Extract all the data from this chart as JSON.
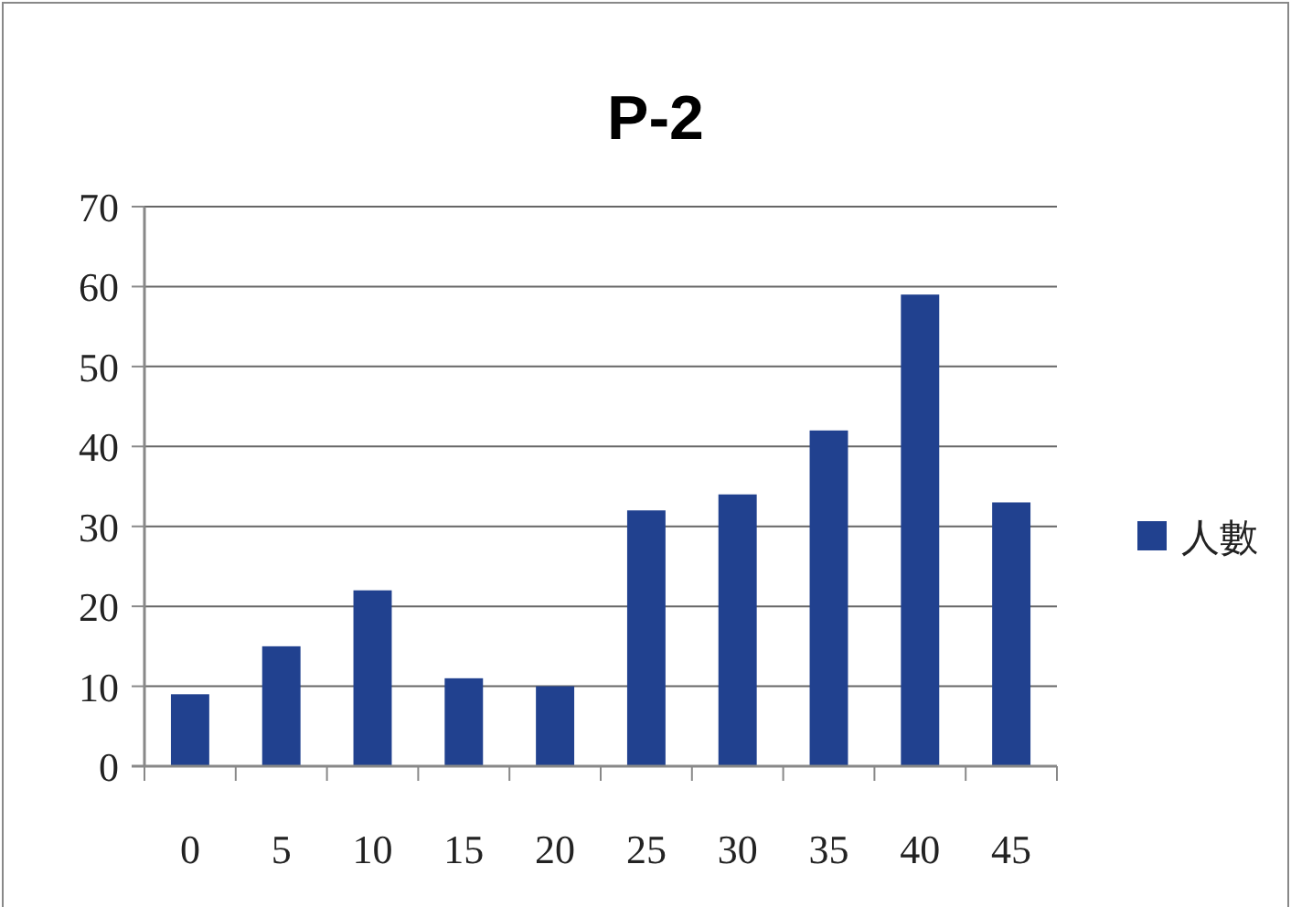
{
  "chart_data": {
    "type": "bar",
    "title": "P-2",
    "categories": [
      "0",
      "5",
      "10",
      "15",
      "20",
      "25",
      "30",
      "35",
      "40",
      "45"
    ],
    "series": [
      {
        "name": "人數",
        "color": "#21418f",
        "values": [
          9,
          15,
          22,
          11,
          10,
          32,
          34,
          42,
          59,
          33
        ]
      }
    ],
    "ylim": [
      0,
      70
    ],
    "yticks": [
      0,
      10,
      20,
      30,
      40,
      50,
      60,
      70
    ],
    "grid": "y",
    "legend": "right"
  }
}
